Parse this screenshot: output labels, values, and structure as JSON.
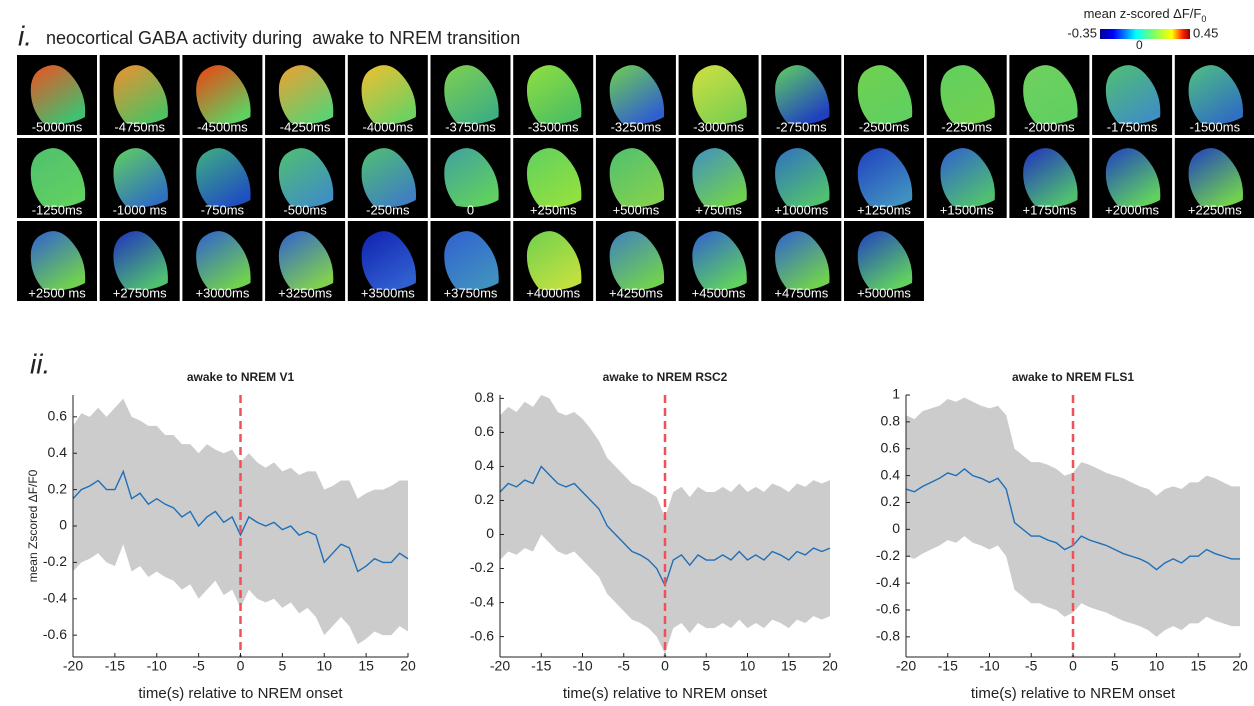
{
  "panel_i": {
    "label": "i.",
    "title": "neocortical GABA activity during  awake to NREM transition",
    "colorbar": {
      "label": "mean z-scored ΔF/F",
      "label_subscript": "0",
      "lim": [
        -0.35,
        0.45
      ],
      "ticks": [
        -0.35,
        0,
        0.45
      ]
    },
    "frames": [
      {
        "label": "-5000ms",
        "colors": [
          "#f05020",
          "#40c070"
        ]
      },
      {
        "label": "-4750ms",
        "colors": [
          "#f09030",
          "#50c060"
        ]
      },
      {
        "label": "-4500ms",
        "colors": [
          "#f04010",
          "#60d060"
        ]
      },
      {
        "label": "-4250ms",
        "colors": [
          "#f0a030",
          "#60d070"
        ]
      },
      {
        "label": "-4000ms",
        "colors": [
          "#f0c030",
          "#70d060"
        ]
      },
      {
        "label": "-3750ms",
        "colors": [
          "#80d050",
          "#40b080"
        ]
      },
      {
        "label": "-3500ms",
        "colors": [
          "#90e040",
          "#50c060"
        ]
      },
      {
        "label": "-3250ms",
        "colors": [
          "#70d050",
          "#3060d0"
        ]
      },
      {
        "label": "-3000ms",
        "colors": [
          "#d0e040",
          "#80d050"
        ]
      },
      {
        "label": "-2750ms",
        "colors": [
          "#60d060",
          "#2040c0"
        ]
      },
      {
        "label": "-2500ms",
        "colors": [
          "#70d050",
          "#60d060"
        ]
      },
      {
        "label": "-2250ms",
        "colors": [
          "#60d060",
          "#70d050"
        ]
      },
      {
        "label": "-2000ms",
        "colors": [
          "#70d060",
          "#60d060"
        ]
      },
      {
        "label": "-1750ms",
        "colors": [
          "#50c070",
          "#4090c0"
        ]
      },
      {
        "label": "-1500ms",
        "colors": [
          "#50c080",
          "#3070c0"
        ]
      },
      {
        "label": "-1250ms",
        "colors": [
          "#50c070",
          "#60d060"
        ]
      },
      {
        "label": "-1000 ms",
        "colors": [
          "#60d060",
          "#3070c0"
        ]
      },
      {
        "label": "-750ms",
        "colors": [
          "#40b080",
          "#2050c0"
        ]
      },
      {
        "label": "-500ms",
        "colors": [
          "#50c070",
          "#4090c0"
        ]
      },
      {
        "label": "-250ms",
        "colors": [
          "#50c070",
          "#4080c0"
        ]
      },
      {
        "label": "0",
        "colors": [
          "#40a0a0",
          "#60d060"
        ]
      },
      {
        "label": "+250ms",
        "colors": [
          "#60d060",
          "#90e040"
        ]
      },
      {
        "label": "+500ms",
        "colors": [
          "#50c070",
          "#80d050"
        ]
      },
      {
        "label": "+750ms",
        "colors": [
          "#4090c0",
          "#70d050"
        ]
      },
      {
        "label": "+1000ms",
        "colors": [
          "#3070c0",
          "#50c070"
        ]
      },
      {
        "label": "+1250ms",
        "colors": [
          "#2040c0",
          "#4090c0"
        ]
      },
      {
        "label": "+1500ms",
        "colors": [
          "#3060d0",
          "#50c070"
        ]
      },
      {
        "label": "+1750ms",
        "colors": [
          "#2030c0",
          "#50c070"
        ]
      },
      {
        "label": "+2000ms",
        "colors": [
          "#2040c0",
          "#60d060"
        ]
      },
      {
        "label": "+2250ms",
        "colors": [
          "#2040c0",
          "#70d050"
        ]
      },
      {
        "label": "+2500 ms",
        "colors": [
          "#3060d0",
          "#70d050"
        ]
      },
      {
        "label": "+2750ms",
        "colors": [
          "#2030c0",
          "#50c070"
        ]
      },
      {
        "label": "+3000ms",
        "colors": [
          "#3060d0",
          "#70d050"
        ]
      },
      {
        "label": "+3250ms",
        "colors": [
          "#3060d0",
          "#80d050"
        ]
      },
      {
        "label": "+3500ms",
        "colors": [
          "#1020b0",
          "#3060d0"
        ]
      },
      {
        "label": "+3750ms",
        "colors": [
          "#3060d0",
          "#4090c0"
        ]
      },
      {
        "label": "+4000ms",
        "colors": [
          "#70d050",
          "#c0e040"
        ]
      },
      {
        "label": "+4250ms",
        "colors": [
          "#4080c0",
          "#70d050"
        ]
      },
      {
        "label": "+4500ms",
        "colors": [
          "#3060d0",
          "#60d060"
        ]
      },
      {
        "label": "+4750ms",
        "colors": [
          "#3060d0",
          "#70d050"
        ]
      },
      {
        "label": "+5000ms",
        "colors": [
          "#2040c0",
          "#60d060"
        ]
      }
    ]
  },
  "panel_ii_label": "ii.",
  "chart_data": [
    {
      "type": "line",
      "title": "awake to NREM V1",
      "xlabel": "time(s) relative to NREM onset",
      "ylabel": "mean Zscored ΔF/F0",
      "xlim": [
        -20,
        20
      ],
      "xticks": [
        -20,
        -15,
        -10,
        -5,
        0,
        5,
        10,
        15,
        20
      ],
      "ylim": [
        -0.72,
        0.72
      ],
      "yticks": [
        -0.6,
        -0.4,
        -0.2,
        0,
        0.2,
        0.4,
        0.6
      ],
      "vline": {
        "value": 0,
        "color": "#f0505a"
      },
      "band_color": "#cccccc",
      "x": [
        -20,
        -19,
        -18,
        -17,
        -16,
        -15,
        -14,
        -13,
        -12,
        -11,
        -10,
        -9,
        -8,
        -7,
        -6,
        -5,
        -4,
        -3,
        -2,
        -1,
        0,
        1,
        2,
        3,
        4,
        5,
        6,
        7,
        8,
        9,
        10,
        11,
        12,
        13,
        14,
        15,
        16,
        17,
        18,
        19,
        20
      ],
      "series": [
        {
          "color": "#1f6fb8",
          "values": [
            0.15,
            0.2,
            0.22,
            0.25,
            0.2,
            0.2,
            0.3,
            0.15,
            0.18,
            0.12,
            0.15,
            0.12,
            0.1,
            0.05,
            0.08,
            0.0,
            0.05,
            0.08,
            0.02,
            0.05,
            -0.05,
            0.05,
            0.02,
            0.0,
            0.02,
            -0.02,
            0.0,
            -0.05,
            -0.03,
            -0.05,
            -0.2,
            -0.15,
            -0.1,
            -0.12,
            -0.25,
            -0.22,
            -0.18,
            -0.2,
            -0.2,
            -0.15,
            -0.18
          ],
          "upper": [
            0.55,
            0.62,
            0.6,
            0.65,
            0.6,
            0.65,
            0.7,
            0.6,
            0.58,
            0.55,
            0.55,
            0.5,
            0.5,
            0.45,
            0.45,
            0.4,
            0.45,
            0.42,
            0.4,
            0.42,
            0.35,
            0.4,
            0.35,
            0.32,
            0.35,
            0.3,
            0.32,
            0.28,
            0.3,
            0.3,
            0.2,
            0.22,
            0.25,
            0.25,
            0.15,
            0.18,
            0.2,
            0.2,
            0.22,
            0.25,
            0.25
          ],
          "lower": [
            -0.25,
            -0.2,
            -0.18,
            -0.15,
            -0.2,
            -0.22,
            -0.1,
            -0.25,
            -0.22,
            -0.28,
            -0.25,
            -0.28,
            -0.3,
            -0.35,
            -0.32,
            -0.4,
            -0.35,
            -0.3,
            -0.38,
            -0.35,
            -0.45,
            -0.35,
            -0.4,
            -0.42,
            -0.4,
            -0.45,
            -0.42,
            -0.48,
            -0.45,
            -0.5,
            -0.6,
            -0.55,
            -0.5,
            -0.55,
            -0.65,
            -0.62,
            -0.58,
            -0.6,
            -0.6,
            -0.55,
            -0.58
          ]
        }
      ]
    },
    {
      "type": "line",
      "title": "awake to NREM RSC2",
      "xlabel": "time(s) relative to NREM onset",
      "xlim": [
        -20,
        20
      ],
      "xticks": [
        -20,
        -15,
        -10,
        -5,
        0,
        5,
        10,
        15,
        20
      ],
      "ylim": [
        -0.72,
        0.82
      ],
      "yticks": [
        -0.6,
        -0.4,
        -0.2,
        0,
        0.2,
        0.4,
        0.6,
        0.8
      ],
      "vline": {
        "value": 0,
        "color": "#f0505a"
      },
      "band_color": "#cccccc",
      "x": [
        -20,
        -19,
        -18,
        -17,
        -16,
        -15,
        -14,
        -13,
        -12,
        -11,
        -10,
        -9,
        -8,
        -7,
        -6,
        -5,
        -4,
        -3,
        -2,
        -1,
        0,
        1,
        2,
        3,
        4,
        5,
        6,
        7,
        8,
        9,
        10,
        11,
        12,
        13,
        14,
        15,
        16,
        17,
        18,
        19,
        20
      ],
      "series": [
        {
          "color": "#1f6fb8",
          "values": [
            0.25,
            0.3,
            0.28,
            0.32,
            0.3,
            0.4,
            0.35,
            0.3,
            0.28,
            0.3,
            0.25,
            0.2,
            0.15,
            0.05,
            0.0,
            -0.05,
            -0.1,
            -0.12,
            -0.15,
            -0.2,
            -0.3,
            -0.15,
            -0.12,
            -0.18,
            -0.12,
            -0.15,
            -0.15,
            -0.12,
            -0.15,
            -0.1,
            -0.15,
            -0.12,
            -0.15,
            -0.1,
            -0.12,
            -0.15,
            -0.1,
            -0.12,
            -0.08,
            -0.1,
            -0.08
          ],
          "upper": [
            0.7,
            0.75,
            0.72,
            0.78,
            0.75,
            0.82,
            0.8,
            0.72,
            0.7,
            0.72,
            0.68,
            0.62,
            0.55,
            0.45,
            0.4,
            0.35,
            0.3,
            0.28,
            0.25,
            0.22,
            0.1,
            0.25,
            0.28,
            0.22,
            0.28,
            0.25,
            0.25,
            0.28,
            0.25,
            0.3,
            0.25,
            0.28,
            0.25,
            0.3,
            0.28,
            0.25,
            0.3,
            0.28,
            0.32,
            0.3,
            0.32
          ],
          "lower": [
            -0.15,
            -0.1,
            -0.12,
            -0.08,
            -0.1,
            0.0,
            -0.05,
            -0.1,
            -0.12,
            -0.1,
            -0.15,
            -0.2,
            -0.25,
            -0.35,
            -0.4,
            -0.45,
            -0.5,
            -0.52,
            -0.55,
            -0.6,
            -0.7,
            -0.55,
            -0.52,
            -0.58,
            -0.52,
            -0.55,
            -0.55,
            -0.52,
            -0.55,
            -0.5,
            -0.55,
            -0.52,
            -0.55,
            -0.5,
            -0.52,
            -0.55,
            -0.5,
            -0.52,
            -0.48,
            -0.5,
            -0.48
          ]
        }
      ]
    },
    {
      "type": "line",
      "title": "awake to NREM FLS1",
      "xlabel": "time(s) relative to NREM onset",
      "xlim": [
        -20,
        20
      ],
      "xticks": [
        -20,
        -15,
        -10,
        -5,
        0,
        5,
        10,
        15,
        20
      ],
      "ylim": [
        -0.95,
        1
      ],
      "yticks": [
        -0.8,
        -0.6,
        -0.4,
        -0.2,
        0,
        0.2,
        0.4,
        0.6,
        0.8,
        1
      ],
      "vline": {
        "value": 0,
        "color": "#f0505a"
      },
      "band_color": "#cccccc",
      "x": [
        -20,
        -19,
        -18,
        -17,
        -16,
        -15,
        -14,
        -13,
        -12,
        -11,
        -10,
        -9,
        -8,
        -7,
        -6,
        -5,
        -4,
        -3,
        -2,
        -1,
        0,
        1,
        2,
        3,
        4,
        5,
        6,
        7,
        8,
        9,
        10,
        11,
        12,
        13,
        14,
        15,
        16,
        17,
        18,
        19,
        20
      ],
      "series": [
        {
          "color": "#1f6fb8",
          "values": [
            0.3,
            0.28,
            0.32,
            0.35,
            0.38,
            0.42,
            0.4,
            0.45,
            0.4,
            0.38,
            0.35,
            0.38,
            0.3,
            0.05,
            0.0,
            -0.05,
            -0.05,
            -0.08,
            -0.1,
            -0.15,
            -0.12,
            -0.05,
            -0.08,
            -0.1,
            -0.12,
            -0.15,
            -0.18,
            -0.2,
            -0.22,
            -0.25,
            -0.3,
            -0.25,
            -0.22,
            -0.25,
            -0.2,
            -0.2,
            -0.15,
            -0.18,
            -0.2,
            -0.22,
            -0.22
          ],
          "upper": [
            0.85,
            0.82,
            0.88,
            0.9,
            0.92,
            0.97,
            0.95,
            0.98,
            0.95,
            0.92,
            0.9,
            0.92,
            0.85,
            0.6,
            0.55,
            0.5,
            0.5,
            0.48,
            0.45,
            0.4,
            0.42,
            0.5,
            0.48,
            0.45,
            0.42,
            0.4,
            0.38,
            0.35,
            0.32,
            0.3,
            0.25,
            0.3,
            0.32,
            0.3,
            0.35,
            0.35,
            0.4,
            0.38,
            0.35,
            0.32,
            0.32
          ],
          "lower": [
            -0.2,
            -0.22,
            -0.18,
            -0.15,
            -0.12,
            -0.08,
            -0.1,
            -0.05,
            -0.1,
            -0.12,
            -0.15,
            -0.12,
            -0.2,
            -0.45,
            -0.5,
            -0.55,
            -0.55,
            -0.58,
            -0.6,
            -0.65,
            -0.62,
            -0.55,
            -0.58,
            -0.6,
            -0.62,
            -0.65,
            -0.68,
            -0.7,
            -0.72,
            -0.75,
            -0.8,
            -0.75,
            -0.72,
            -0.75,
            -0.7,
            -0.7,
            -0.65,
            -0.68,
            -0.7,
            -0.72,
            -0.72
          ]
        }
      ]
    }
  ]
}
